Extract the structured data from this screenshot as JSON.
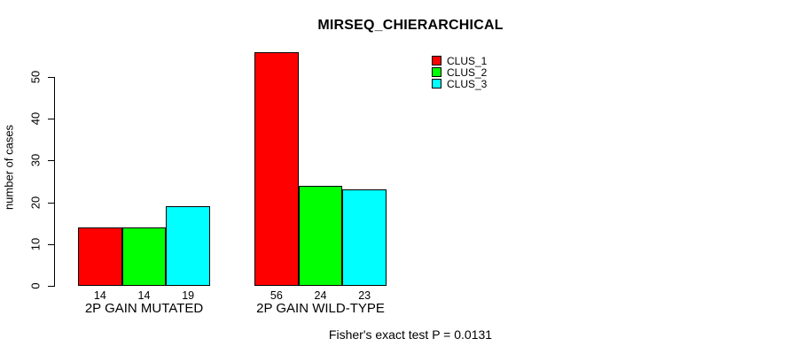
{
  "chart_data": {
    "type": "bar",
    "title": "MIRSEQ_CHIERARCHICAL",
    "ylabel": "number of cases",
    "xlabel": "",
    "categories": [
      "2P GAIN MUTATED",
      "2P GAIN WILD-TYPE"
    ],
    "series": [
      {
        "name": "CLUS_1",
        "color": "#ff0000",
        "values": [
          14,
          56
        ]
      },
      {
        "name": "CLUS_2",
        "color": "#00ff00",
        "values": [
          14,
          24
        ]
      },
      {
        "name": "CLUS_3",
        "color": "#00ffff",
        "values": [
          19,
          23
        ]
      }
    ],
    "bar_value_labels": [
      [
        14,
        14,
        19
      ],
      [
        56,
        24,
        23
      ]
    ],
    "yticks": [
      0,
      10,
      20,
      30,
      40,
      50
    ],
    "ylim": [
      0,
      56
    ],
    "grid": false,
    "legend_position": "top-right-inside",
    "annotation": "Fisher's exact test P = 0.0131"
  },
  "colors": {
    "background": "#ffffff",
    "axis": "#000000",
    "text": "#000000"
  }
}
